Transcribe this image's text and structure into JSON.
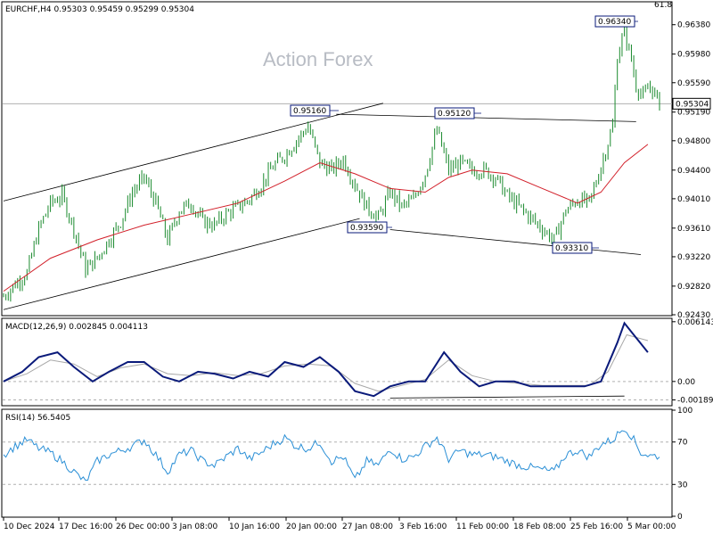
{
  "header": {
    "symbol_line": "EURCHF,H4  0.95303 0.95459 0.95299 0.95304",
    "corner_value": "61.8"
  },
  "watermark": "Action Forex",
  "colors": {
    "candle": "#1a8a2e",
    "ma": "#d2202a",
    "macd_main": "#0a1a7a",
    "macd_signal": "#a8a8a8",
    "rsi": "#2a8fd6",
    "box_border": "#0a1a7a"
  },
  "chart_data": [
    {
      "type": "candlestick",
      "title": "EURCHF,H4",
      "ylim": [
        0.9243,
        0.9668
      ],
      "y_ticks": [
        "0.96380",
        "0.95980",
        "0.95590",
        "0.95190",
        "0.94800",
        "0.94400",
        "0.94010",
        "0.93610",
        "0.93220",
        "0.92820",
        "0.92430"
      ],
      "current_price": "0.95304",
      "annotations": [
        {
          "label": "0.96340",
          "value": 0.9634
        },
        {
          "label": "0.95160",
          "value": 0.9516
        },
        {
          "label": "0.95120",
          "value": 0.9512
        },
        {
          "label": "0.93590",
          "value": 0.9359
        },
        {
          "label": "0.93310",
          "value": 0.9331
        }
      ],
      "x_labels": [
        "10 Dec 2024",
        "17 Dec 16:00",
        "26 Dec 00:00",
        "3 Jan 08:00",
        "10 Jan 16:00",
        "20 Jan 00:00",
        "27 Jan 08:00",
        "3 Feb 16:00",
        "11 Feb 00:00",
        "18 Feb 08:00",
        "25 Feb 16:00",
        "5 Mar 00:00"
      ],
      "close_path": [
        [
          0,
          0.9268
        ],
        [
          5,
          0.9285
        ],
        [
          10,
          0.93
        ],
        [
          15,
          0.936
        ],
        [
          20,
          0.9395
        ],
        [
          25,
          0.9405
        ],
        [
          30,
          0.936
        ],
        [
          35,
          0.9305
        ],
        [
          40,
          0.932
        ],
        [
          45,
          0.9345
        ],
        [
          50,
          0.937
        ],
        [
          55,
          0.941
        ],
        [
          60,
          0.943
        ],
        [
          65,
          0.9395
        ],
        [
          70,
          0.9345
        ],
        [
          75,
          0.9385
        ],
        [
          80,
          0.9395
        ],
        [
          85,
          0.937
        ],
        [
          90,
          0.9365
        ],
        [
          95,
          0.938
        ],
        [
          100,
          0.939
        ],
        [
          105,
          0.94
        ],
        [
          110,
          0.942
        ],
        [
          115,
          0.9445
        ],
        [
          120,
          0.946
        ],
        [
          125,
          0.948
        ],
        [
          130,
          0.95
        ],
        [
          135,
          0.945
        ],
        [
          140,
          0.944
        ],
        [
          145,
          0.9455
        ],
        [
          150,
          0.942
        ],
        [
          155,
          0.939
        ],
        [
          160,
          0.9375
        ],
        [
          165,
          0.941
        ],
        [
          170,
          0.939
        ],
        [
          175,
          0.94
        ],
        [
          180,
          0.9435
        ],
        [
          185,
          0.9495
        ],
        [
          190,
          0.944
        ],
        [
          195,
          0.945
        ],
        [
          200,
          0.944
        ],
        [
          205,
          0.944
        ],
        [
          210,
          0.943
        ],
        [
          215,
          0.9405
        ],
        [
          220,
          0.939
        ],
        [
          225,
          0.9375
        ],
        [
          230,
          0.936
        ],
        [
          235,
          0.9345
        ],
        [
          240,
          0.9385
        ],
        [
          245,
          0.94
        ],
        [
          250,
          0.9395
        ],
        [
          255,
          0.9445
        ],
        [
          260,
          0.95
        ],
        [
          262,
          0.9595
        ],
        [
          265,
          0.963
        ],
        [
          268,
          0.959
        ],
        [
          270,
          0.9555
        ],
        [
          273,
          0.954
        ],
        [
          276,
          0.9555
        ],
        [
          280,
          0.953
        ]
      ],
      "ma_path": [
        [
          0,
          0.9275
        ],
        [
          20,
          0.932
        ],
        [
          40,
          0.9345
        ],
        [
          60,
          0.9365
        ],
        [
          80,
          0.938
        ],
        [
          100,
          0.9395
        ],
        [
          120,
          0.9425
        ],
        [
          135,
          0.945
        ],
        [
          150,
          0.9435
        ],
        [
          165,
          0.9415
        ],
        [
          180,
          0.941
        ],
        [
          190,
          0.943
        ],
        [
          200,
          0.944
        ],
        [
          215,
          0.9435
        ],
        [
          230,
          0.9415
        ],
        [
          245,
          0.9395
        ],
        [
          255,
          0.941
        ],
        [
          265,
          0.945
        ],
        [
          275,
          0.9475
        ]
      ]
    },
    {
      "type": "line",
      "title": "MACD(12,26,9) 0.002845 0.004113",
      "ylim": [
        -0.0024,
        0.0064
      ],
      "y_ticks": [
        "0.006143",
        "0.00",
        "-0.001896"
      ],
      "main_path": [
        [
          0,
          0.0
        ],
        [
          8,
          0.001
        ],
        [
          15,
          0.0025
        ],
        [
          23,
          0.003
        ],
        [
          30,
          0.0015
        ],
        [
          38,
          0.0
        ],
        [
          45,
          0.001
        ],
        [
          53,
          0.002
        ],
        [
          60,
          0.002
        ],
        [
          68,
          0.0005
        ],
        [
          75,
          0.0
        ],
        [
          83,
          0.001
        ],
        [
          90,
          0.0008
        ],
        [
          98,
          0.0003
        ],
        [
          105,
          0.001
        ],
        [
          113,
          0.0005
        ],
        [
          120,
          0.002
        ],
        [
          128,
          0.0015
        ],
        [
          135,
          0.0025
        ],
        [
          143,
          0.001
        ],
        [
          150,
          -0.001
        ],
        [
          158,
          -0.0015
        ],
        [
          165,
          -0.0005
        ],
        [
          173,
          0.0
        ],
        [
          180,
          0.0
        ],
        [
          188,
          0.003
        ],
        [
          195,
          0.001
        ],
        [
          203,
          -0.0005
        ],
        [
          210,
          0.0
        ],
        [
          218,
          0.0
        ],
        [
          225,
          -0.0005
        ],
        [
          233,
          -0.0005
        ],
        [
          240,
          -0.0005
        ],
        [
          248,
          -0.0005
        ],
        [
          255,
          0.0
        ],
        [
          262,
          0.004
        ],
        [
          265,
          0.006
        ],
        [
          270,
          0.0045
        ],
        [
          275,
          0.003
        ]
      ],
      "signal_path": [
        [
          0,
          0.0
        ],
        [
          10,
          0.0008
        ],
        [
          20,
          0.0022
        ],
        [
          30,
          0.0018
        ],
        [
          40,
          0.0005
        ],
        [
          50,
          0.0014
        ],
        [
          60,
          0.0018
        ],
        [
          70,
          0.0008
        ],
        [
          80,
          0.0006
        ],
        [
          90,
          0.0009
        ],
        [
          100,
          0.0006
        ],
        [
          110,
          0.0008
        ],
        [
          120,
          0.0016
        ],
        [
          130,
          0.0018
        ],
        [
          140,
          0.0016
        ],
        [
          150,
          -0.0002
        ],
        [
          160,
          -0.001
        ],
        [
          170,
          -0.0004
        ],
        [
          180,
          0.0002
        ],
        [
          190,
          0.0022
        ],
        [
          200,
          0.0006
        ],
        [
          210,
          0.0
        ],
        [
          220,
          -0.0002
        ],
        [
          230,
          -0.0004
        ],
        [
          240,
          -0.0004
        ],
        [
          250,
          -0.0004
        ],
        [
          258,
          0.001
        ],
        [
          266,
          0.0048
        ],
        [
          275,
          0.0042
        ]
      ],
      "support_path": [
        [
          165,
          -0.0017
        ],
        [
          265,
          -0.0015
        ]
      ]
    },
    {
      "type": "line",
      "title": "RSI(14) 56.5405",
      "ylim": [
        0,
        100
      ],
      "y_ticks": [
        "100",
        "70",
        "30",
        "0"
      ],
      "levels": [
        70,
        30
      ],
      "path": [
        [
          0,
          58
        ],
        [
          5,
          66
        ],
        [
          10,
          72
        ],
        [
          15,
          64
        ],
        [
          20,
          60
        ],
        [
          25,
          52
        ],
        [
          30,
          42
        ],
        [
          35,
          32
        ],
        [
          40,
          52
        ],
        [
          45,
          58
        ],
        [
          50,
          62
        ],
        [
          55,
          66
        ],
        [
          60,
          72
        ],
        [
          65,
          58
        ],
        [
          70,
          42
        ],
        [
          75,
          58
        ],
        [
          80,
          62
        ],
        [
          85,
          52
        ],
        [
          90,
          48
        ],
        [
          95,
          56
        ],
        [
          100,
          64
        ],
        [
          105,
          54
        ],
        [
          110,
          60
        ],
        [
          115,
          68
        ],
        [
          120,
          74
        ],
        [
          125,
          66
        ],
        [
          130,
          64
        ],
        [
          135,
          70
        ],
        [
          140,
          52
        ],
        [
          145,
          56
        ],
        [
          150,
          34
        ],
        [
          155,
          52
        ],
        [
          160,
          48
        ],
        [
          165,
          64
        ],
        [
          170,
          54
        ],
        [
          175,
          56
        ],
        [
          180,
          66
        ],
        [
          185,
          74
        ],
        [
          190,
          54
        ],
        [
          195,
          62
        ],
        [
          200,
          58
        ],
        [
          205,
          58
        ],
        [
          210,
          56
        ],
        [
          215,
          52
        ],
        [
          220,
          48
        ],
        [
          225,
          46
        ],
        [
          230,
          44
        ],
        [
          235,
          42
        ],
        [
          240,
          58
        ],
        [
          245,
          62
        ],
        [
          250,
          56
        ],
        [
          255,
          68
        ],
        [
          260,
          72
        ],
        [
          265,
          84
        ],
        [
          268,
          76
        ],
        [
          272,
          60
        ],
        [
          276,
          57
        ]
      ]
    }
  ]
}
